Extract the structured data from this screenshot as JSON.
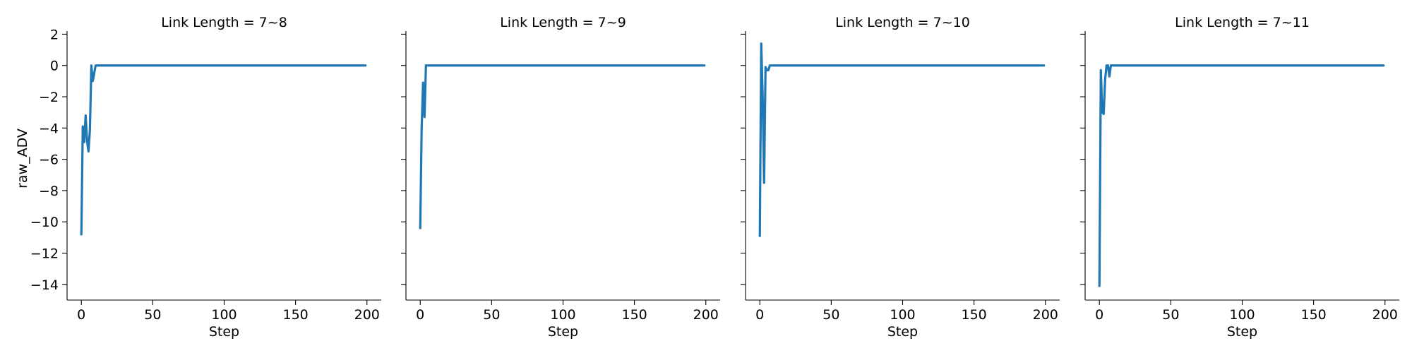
{
  "chart_data": [
    {
      "type": "line",
      "title": "Link Length = 7~8",
      "xlabel": "Step",
      "ylabel": "raw_ADV",
      "xlim": [
        -10,
        210
      ],
      "ylim": [
        -15,
        2.2
      ],
      "xticks": [
        0,
        50,
        100,
        150,
        200
      ],
      "yticks": [
        2,
        0,
        -2,
        -4,
        -6,
        -8,
        -10,
        -12,
        -14
      ],
      "grid": false,
      "color": "#1f77b4",
      "series": [
        {
          "x": [
            0,
            1,
            2,
            3,
            4,
            5,
            6,
            7,
            8,
            10,
            199
          ],
          "y": [
            -10.8,
            -3.9,
            -4.9,
            -3.2,
            -4.8,
            -5.5,
            -4.1,
            0.0,
            -1.0,
            0.0,
            0.0
          ]
        }
      ]
    },
    {
      "type": "line",
      "title": "Link Length = 7~9",
      "xlabel": "Step",
      "ylabel": "",
      "xlim": [
        -10,
        210
      ],
      "ylim": [
        -15,
        2.2
      ],
      "xticks": [
        0,
        50,
        100,
        150,
        200
      ],
      "yticks": [],
      "grid": false,
      "color": "#1f77b4",
      "series": [
        {
          "x": [
            0,
            1,
            2,
            3,
            4,
            5,
            199
          ],
          "y": [
            -10.4,
            -4.0,
            -1.1,
            -3.3,
            0.0,
            0.0,
            0.0
          ]
        }
      ]
    },
    {
      "type": "line",
      "title": "Link Length = 7~10",
      "xlabel": "Step",
      "ylabel": "",
      "xlim": [
        -10,
        210
      ],
      "ylim": [
        -15,
        2.2
      ],
      "xticks": [
        0,
        50,
        100,
        150,
        200
      ],
      "yticks": [],
      "grid": false,
      "color": "#1f77b4",
      "series": [
        {
          "x": [
            0,
            1,
            2,
            3,
            4,
            5,
            6,
            7,
            8,
            199
          ],
          "y": [
            -10.9,
            1.4,
            -2.0,
            -7.5,
            -0.1,
            -0.3,
            -0.3,
            0.0,
            0.0,
            0.0
          ]
        }
      ]
    },
    {
      "type": "line",
      "title": "Link Length = 7~11",
      "xlabel": "Step",
      "ylabel": "",
      "xlim": [
        -10,
        210
      ],
      "ylim": [
        -15,
        2.2
      ],
      "xticks": [
        0,
        50,
        100,
        150,
        200
      ],
      "yticks": [],
      "grid": false,
      "color": "#1f77b4",
      "series": [
        {
          "x": [
            0,
            1,
            2,
            3,
            4,
            5,
            6,
            7,
            8,
            10,
            199
          ],
          "y": [
            -14.1,
            -0.3,
            -3.0,
            -3.1,
            -0.9,
            0.0,
            0.0,
            -0.7,
            0.0,
            0.0,
            0.0
          ]
        }
      ]
    }
  ]
}
